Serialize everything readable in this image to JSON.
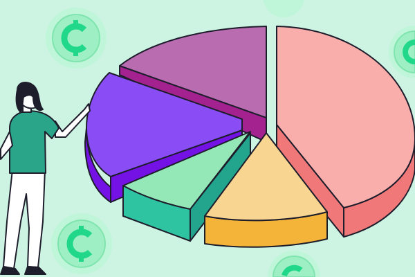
{
  "illustration": {
    "subject": "pie-chart-with-person-and-coins",
    "colors": {
      "background": "#cdf4e2",
      "slice_pink": "#f9aeac",
      "slice_pink_side": "#f07878",
      "slice_magenta": "#b96cb0",
      "slice_magenta_side": "#a3228f",
      "slice_violet": "#8a4cf4",
      "slice_violet_side": "#7412e6",
      "slice_green": "#94e7b6",
      "slice_green_side": "#2ec4a2",
      "slice_yellow": "#f8d591",
      "slice_yellow_side": "#f4b43a",
      "coin": "#9ef0c4",
      "coin_symbol": "#21d88a",
      "shirt": "#2aa58a"
    }
  }
}
